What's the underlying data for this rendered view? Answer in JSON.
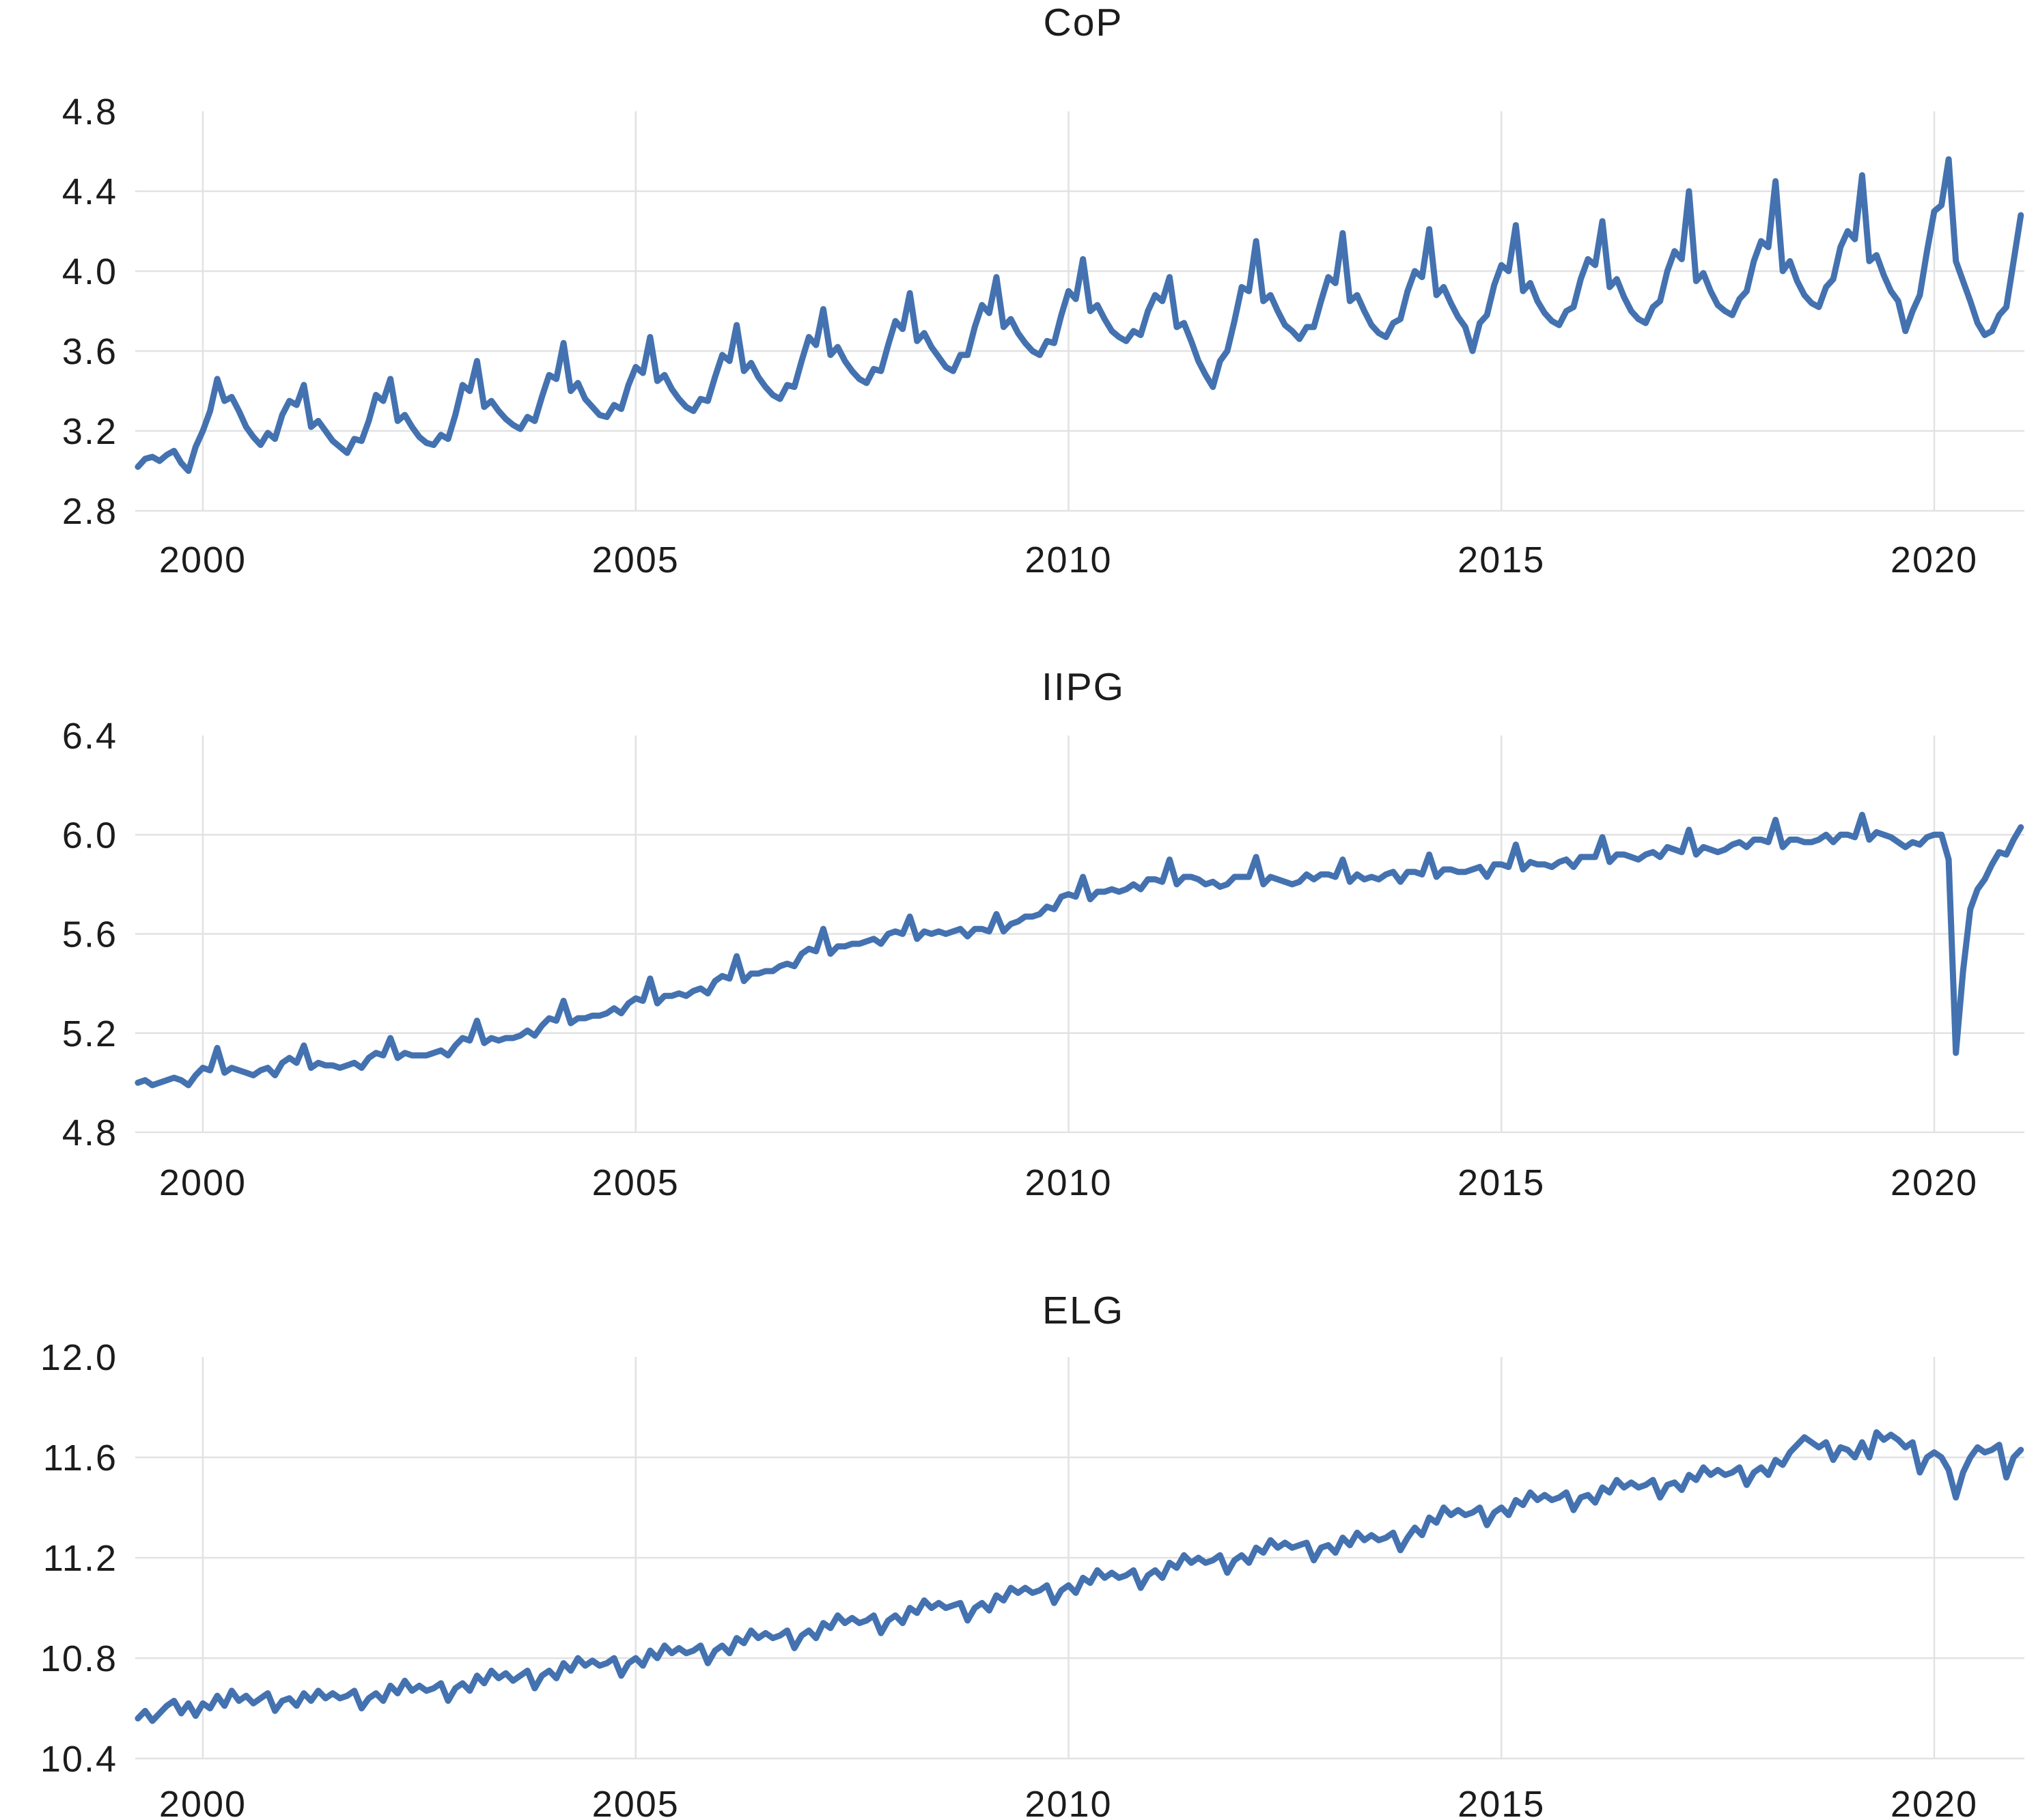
{
  "figure": {
    "background": "#ffffff",
    "text_color": "#1c1c1c",
    "grid_color": "#e2e2e2",
    "line_color": "#4472b0",
    "line_width": 9
  },
  "chart_data": [
    {
      "type": "line",
      "title": "CoP",
      "legend": null,
      "grid": true,
      "x_frequency": "monthly",
      "x_start": {
        "year": 1999,
        "month": 4
      },
      "x_end": {
        "year": 2021,
        "month": 1
      },
      "xtick_values": [
        2000,
        2005,
        2010,
        2015,
        2020
      ],
      "xtick_labels": [
        "2000",
        "2005",
        "2010",
        "2015",
        "2020"
      ],
      "ylim": [
        2.8,
        4.8
      ],
      "ytick_values": [
        2.8,
        3.2,
        3.6,
        4.0,
        4.4,
        4.8
      ],
      "ytick_labels": [
        "2.8",
        "3.2",
        "3.6",
        "4.0",
        "4.4",
        "4.8"
      ],
      "values": [
        3.02,
        3.06,
        3.07,
        3.05,
        3.08,
        3.1,
        3.04,
        3.0,
        3.12,
        3.2,
        3.3,
        3.46,
        3.35,
        3.37,
        3.3,
        3.22,
        3.17,
        3.13,
        3.19,
        3.16,
        3.28,
        3.35,
        3.33,
        3.43,
        3.22,
        3.25,
        3.2,
        3.15,
        3.12,
        3.09,
        3.16,
        3.15,
        3.25,
        3.38,
        3.35,
        3.46,
        3.25,
        3.28,
        3.22,
        3.17,
        3.14,
        3.13,
        3.18,
        3.16,
        3.28,
        3.43,
        3.4,
        3.55,
        3.32,
        3.35,
        3.3,
        3.26,
        3.23,
        3.21,
        3.27,
        3.25,
        3.37,
        3.48,
        3.46,
        3.64,
        3.4,
        3.44,
        3.36,
        3.32,
        3.28,
        3.27,
        3.33,
        3.31,
        3.43,
        3.52,
        3.49,
        3.67,
        3.45,
        3.48,
        3.41,
        3.36,
        3.32,
        3.3,
        3.36,
        3.35,
        3.47,
        3.58,
        3.55,
        3.73,
        3.5,
        3.54,
        3.47,
        3.42,
        3.38,
        3.36,
        3.43,
        3.42,
        3.55,
        3.67,
        3.63,
        3.81,
        3.58,
        3.62,
        3.55,
        3.5,
        3.46,
        3.44,
        3.51,
        3.5,
        3.63,
        3.75,
        3.71,
        3.89,
        3.65,
        3.69,
        3.62,
        3.57,
        3.52,
        3.5,
        3.58,
        3.58,
        3.72,
        3.83,
        3.79,
        3.97,
        3.72,
        3.76,
        3.69,
        3.64,
        3.6,
        3.58,
        3.65,
        3.64,
        3.78,
        3.9,
        3.86,
        4.06,
        3.8,
        3.83,
        3.76,
        3.7,
        3.67,
        3.65,
        3.7,
        3.68,
        3.8,
        3.88,
        3.85,
        3.97,
        3.72,
        3.74,
        3.65,
        3.55,
        3.48,
        3.42,
        3.55,
        3.6,
        3.75,
        3.92,
        3.9,
        4.15,
        3.85,
        3.88,
        3.8,
        3.73,
        3.7,
        3.66,
        3.72,
        3.72,
        3.85,
        3.97,
        3.94,
        4.19,
        3.85,
        3.88,
        3.8,
        3.73,
        3.69,
        3.67,
        3.74,
        3.76,
        3.9,
        4.0,
        3.97,
        4.21,
        3.88,
        3.92,
        3.84,
        3.77,
        3.72,
        3.6,
        3.74,
        3.78,
        3.93,
        4.03,
        4.0,
        4.23,
        3.9,
        3.94,
        3.85,
        3.79,
        3.75,
        3.73,
        3.8,
        3.82,
        3.96,
        4.06,
        4.03,
        4.25,
        3.92,
        3.96,
        3.87,
        3.8,
        3.76,
        3.74,
        3.82,
        3.85,
        4.0,
        4.1,
        4.06,
        4.4,
        3.95,
        3.99,
        3.9,
        3.83,
        3.8,
        3.78,
        3.86,
        3.9,
        4.05,
        4.15,
        4.12,
        4.45,
        4.0,
        4.05,
        3.95,
        3.88,
        3.84,
        3.82,
        3.92,
        3.96,
        4.12,
        4.2,
        4.16,
        4.48,
        4.05,
        4.08,
        3.98,
        3.9,
        3.85,
        3.7,
        3.8,
        3.88,
        4.1,
        4.3,
        4.33,
        4.56,
        4.05,
        3.95,
        3.85,
        3.74,
        3.68,
        3.7,
        3.78,
        3.82,
        4.05,
        4.28
      ]
    },
    {
      "type": "line",
      "title": "IIPG",
      "legend": null,
      "grid": true,
      "x_frequency": "monthly",
      "x_start": {
        "year": 1999,
        "month": 4
      },
      "x_end": {
        "year": 2021,
        "month": 1
      },
      "xtick_values": [
        2000,
        2005,
        2010,
        2015,
        2020
      ],
      "xtick_labels": [
        "2000",
        "2005",
        "2010",
        "2015",
        "2020"
      ],
      "ylim": [
        4.8,
        6.4
      ],
      "ytick_values": [
        4.8,
        5.2,
        5.6,
        6.0,
        6.4
      ],
      "ytick_labels": [
        "4.8",
        "5.2",
        "5.6",
        "6.0",
        "6.4"
      ],
      "values": [
        5.0,
        5.01,
        4.99,
        5.0,
        5.01,
        5.02,
        5.01,
        4.99,
        5.03,
        5.06,
        5.05,
        5.14,
        5.04,
        5.06,
        5.05,
        5.04,
        5.03,
        5.05,
        5.06,
        5.03,
        5.08,
        5.1,
        5.08,
        5.15,
        5.06,
        5.08,
        5.07,
        5.07,
        5.06,
        5.07,
        5.08,
        5.06,
        5.1,
        5.12,
        5.11,
        5.18,
        5.1,
        5.12,
        5.11,
        5.11,
        5.11,
        5.12,
        5.13,
        5.11,
        5.15,
        5.18,
        5.17,
        5.25,
        5.16,
        5.18,
        5.17,
        5.18,
        5.18,
        5.19,
        5.21,
        5.19,
        5.23,
        5.26,
        5.25,
        5.33,
        5.24,
        5.26,
        5.26,
        5.27,
        5.27,
        5.28,
        5.3,
        5.28,
        5.32,
        5.34,
        5.33,
        5.42,
        5.32,
        5.35,
        5.35,
        5.36,
        5.35,
        5.37,
        5.38,
        5.36,
        5.41,
        5.43,
        5.42,
        5.51,
        5.41,
        5.44,
        5.44,
        5.45,
        5.45,
        5.47,
        5.48,
        5.47,
        5.52,
        5.54,
        5.53,
        5.62,
        5.52,
        5.55,
        5.55,
        5.56,
        5.56,
        5.57,
        5.58,
        5.56,
        5.6,
        5.61,
        5.6,
        5.67,
        5.58,
        5.61,
        5.6,
        5.61,
        5.6,
        5.61,
        5.62,
        5.59,
        5.62,
        5.62,
        5.61,
        5.68,
        5.61,
        5.64,
        5.65,
        5.67,
        5.67,
        5.68,
        5.71,
        5.7,
        5.75,
        5.76,
        5.75,
        5.83,
        5.74,
        5.77,
        5.77,
        5.78,
        5.77,
        5.78,
        5.8,
        5.78,
        5.82,
        5.82,
        5.81,
        5.9,
        5.8,
        5.83,
        5.83,
        5.82,
        5.8,
        5.81,
        5.79,
        5.8,
        5.83,
        5.83,
        5.83,
        5.91,
        5.8,
        5.83,
        5.82,
        5.81,
        5.8,
        5.81,
        5.84,
        5.82,
        5.84,
        5.84,
        5.83,
        5.9,
        5.81,
        5.84,
        5.82,
        5.83,
        5.82,
        5.84,
        5.85,
        5.81,
        5.85,
        5.85,
        5.84,
        5.92,
        5.83,
        5.86,
        5.86,
        5.85,
        5.85,
        5.86,
        5.87,
        5.83,
        5.88,
        5.88,
        5.87,
        5.96,
        5.86,
        5.89,
        5.88,
        5.88,
        5.87,
        5.89,
        5.9,
        5.87,
        5.91,
        5.91,
        5.91,
        5.99,
        5.89,
        5.92,
        5.92,
        5.91,
        5.9,
        5.92,
        5.93,
        5.91,
        5.95,
        5.94,
        5.93,
        6.02,
        5.92,
        5.95,
        5.94,
        5.93,
        5.94,
        5.96,
        5.97,
        5.95,
        5.98,
        5.98,
        5.97,
        6.06,
        5.95,
        5.98,
        5.98,
        5.97,
        5.97,
        5.98,
        6.0,
        5.97,
        6.0,
        6.0,
        5.99,
        6.08,
        5.98,
        6.01,
        6.0,
        5.99,
        5.97,
        5.95,
        5.97,
        5.96,
        5.99,
        6.0,
        6.0,
        5.9,
        5.12,
        5.45,
        5.7,
        5.78,
        5.82,
        5.88,
        5.93,
        5.92,
        5.98,
        6.03
      ]
    },
    {
      "type": "line",
      "title": "ELG",
      "legend": null,
      "grid": true,
      "x_frequency": "monthly",
      "x_start": {
        "year": 1999,
        "month": 4
      },
      "x_end": {
        "year": 2021,
        "month": 1
      },
      "xtick_values": [
        2000,
        2005,
        2010,
        2015,
        2020
      ],
      "xtick_labels": [
        "2000",
        "2005",
        "2010",
        "2015",
        "2020"
      ],
      "ylim": [
        10.4,
        12.0
      ],
      "ytick_values": [
        10.4,
        10.8,
        11.2,
        11.6,
        12.0
      ],
      "ytick_labels": [
        "10.4",
        "10.8",
        "11.2",
        "11.6",
        "12.0"
      ],
      "values": [
        10.56,
        10.59,
        10.55,
        10.58,
        10.61,
        10.63,
        10.58,
        10.62,
        10.57,
        10.62,
        10.6,
        10.65,
        10.61,
        10.67,
        10.63,
        10.65,
        10.62,
        10.64,
        10.66,
        10.59,
        10.63,
        10.64,
        10.61,
        10.66,
        10.63,
        10.67,
        10.64,
        10.66,
        10.64,
        10.65,
        10.67,
        10.6,
        10.64,
        10.66,
        10.63,
        10.69,
        10.66,
        10.71,
        10.67,
        10.69,
        10.67,
        10.68,
        10.7,
        10.63,
        10.68,
        10.7,
        10.67,
        10.73,
        10.7,
        10.75,
        10.72,
        10.74,
        10.71,
        10.73,
        10.75,
        10.68,
        10.73,
        10.75,
        10.72,
        10.78,
        10.75,
        10.8,
        10.77,
        10.79,
        10.77,
        10.78,
        10.8,
        10.73,
        10.78,
        10.8,
        10.77,
        10.83,
        10.8,
        10.85,
        10.82,
        10.84,
        10.82,
        10.83,
        10.85,
        10.78,
        10.83,
        10.85,
        10.82,
        10.88,
        10.86,
        10.91,
        10.88,
        10.9,
        10.88,
        10.89,
        10.91,
        10.84,
        10.89,
        10.91,
        10.88,
        10.94,
        10.92,
        10.97,
        10.94,
        10.96,
        10.94,
        10.95,
        10.97,
        10.9,
        10.95,
        10.97,
        10.94,
        11.0,
        10.98,
        11.03,
        11.0,
        11.02,
        11.0,
        11.01,
        11.02,
        10.95,
        11.0,
        11.02,
        10.99,
        11.05,
        11.03,
        11.08,
        11.06,
        11.08,
        11.06,
        11.07,
        11.09,
        11.02,
        11.07,
        11.09,
        11.06,
        11.12,
        11.1,
        11.15,
        11.12,
        11.14,
        11.12,
        11.13,
        11.15,
        11.08,
        11.13,
        11.15,
        11.12,
        11.18,
        11.16,
        11.21,
        11.18,
        11.2,
        11.18,
        11.19,
        11.21,
        11.14,
        11.19,
        11.21,
        11.18,
        11.24,
        11.22,
        11.27,
        11.24,
        11.26,
        11.24,
        11.25,
        11.26,
        11.19,
        11.24,
        11.25,
        11.22,
        11.28,
        11.25,
        11.3,
        11.27,
        11.29,
        11.27,
        11.28,
        11.3,
        11.23,
        11.28,
        11.32,
        11.29,
        11.36,
        11.34,
        11.4,
        11.37,
        11.39,
        11.37,
        11.38,
        11.4,
        11.33,
        11.38,
        11.4,
        11.37,
        11.43,
        11.41,
        11.46,
        11.43,
        11.45,
        11.43,
        11.44,
        11.46,
        11.39,
        11.44,
        11.45,
        11.42,
        11.48,
        11.46,
        11.51,
        11.48,
        11.5,
        11.48,
        11.49,
        11.51,
        11.44,
        11.49,
        11.5,
        11.47,
        11.53,
        11.51,
        11.56,
        11.53,
        11.55,
        11.53,
        11.54,
        11.56,
        11.49,
        11.54,
        11.56,
        11.53,
        11.59,
        11.57,
        11.62,
        11.65,
        11.68,
        11.66,
        11.64,
        11.66,
        11.59,
        11.64,
        11.63,
        11.6,
        11.66,
        11.6,
        11.7,
        11.67,
        11.69,
        11.67,
        11.64,
        11.66,
        11.54,
        11.6,
        11.62,
        11.6,
        11.55,
        11.44,
        11.54,
        11.6,
        11.64,
        11.62,
        11.63,
        11.65,
        11.52,
        11.6,
        11.63
      ]
    }
  ]
}
